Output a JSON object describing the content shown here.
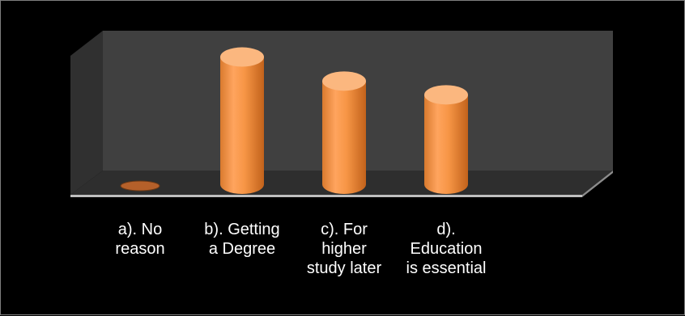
{
  "chart_data": {
    "type": "bar",
    "style": "3d-cylinder",
    "categories": [
      "a). No\nreason",
      "b). Getting\na Degree",
      "c). For\nhigher\nstudy later",
      "d).\nEducation\nis essential"
    ],
    "values": [
      0,
      74,
      60,
      52
    ],
    "ylim": [
      0,
      100
    ],
    "grid": false,
    "legend": "none",
    "colors": {
      "bar": "#f79646",
      "bar_dark": "#c8681f",
      "bar_top": "#fbb77f",
      "back_wall": "#404040",
      "floor": "#2e2e2e",
      "floor_edge": "#bfbfbf",
      "background": "#000000"
    }
  }
}
